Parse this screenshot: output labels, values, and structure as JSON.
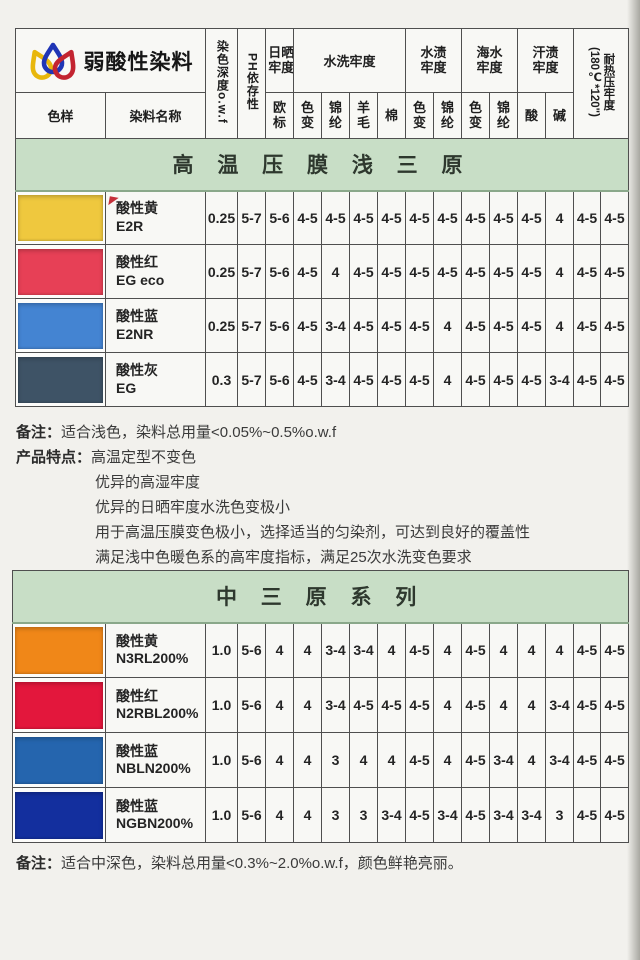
{
  "brand": {
    "title": "弱酸性染料"
  },
  "colors": {
    "band_green": "#c8dec6",
    "logo_yellow": "#e8b70c",
    "logo_blue": "#1f35b5",
    "logo_red": "#c32430"
  },
  "header": {
    "sample_label": "色样",
    "name_label": "染料名称",
    "depth_label": "染色深度o.w.f",
    "ph_label": "PH依存性",
    "sun_group": "日晒牢度",
    "sun_sub": "欧标",
    "wash_group": "水洗牢度",
    "wash_sub": [
      "色变",
      "锦纶",
      "羊毛",
      "棉"
    ],
    "water_group": "水渍牢度",
    "water_sub": [
      "色变",
      "锦纶"
    ],
    "sea_group": "海水牢度",
    "sea_sub": [
      "色变",
      "锦纶"
    ],
    "sweat_group": "汗渍牢度",
    "sweat_sub": [
      "酸",
      "碱"
    ],
    "heat_name": "耐热压牢度",
    "heat_cond": "(180℃*120\")"
  },
  "table1": {
    "title": "高 温 压 膜 浅 三 原",
    "rows": [
      {
        "color": "#efc83e",
        "name": "酸性黄",
        "code": "E2R",
        "marker": true,
        "values": [
          "0.25",
          "5-7",
          "5-6",
          "4-5",
          "4-5",
          "4-5",
          "4-5",
          "4-5",
          "4-5",
          "4-5",
          "4-5",
          "4-5",
          "4",
          "4-5",
          "4-5"
        ]
      },
      {
        "color": "#e74056",
        "name": "酸性红",
        "code": "EG eco",
        "values": [
          "0.25",
          "5-7",
          "5-6",
          "4-5",
          "4",
          "4-5",
          "4-5",
          "4-5",
          "4-5",
          "4-5",
          "4-5",
          "4-5",
          "4",
          "4-5",
          "4-5"
        ]
      },
      {
        "color": "#4484d2",
        "name": "酸性蓝",
        "code": "E2NR",
        "values": [
          "0.25",
          "5-7",
          "5-6",
          "4-5",
          "3-4",
          "4-5",
          "4-5",
          "4-5",
          "4",
          "4-5",
          "4-5",
          "4-5",
          "4",
          "4-5",
          "4-5"
        ]
      },
      {
        "color": "#3e5366",
        "name": "酸性灰",
        "code": "EG",
        "values": [
          "0.3",
          "5-7",
          "5-6",
          "4-5",
          "3-4",
          "4-5",
          "4-5",
          "4-5",
          "4",
          "4-5",
          "4-5",
          "4-5",
          "3-4",
          "4-5",
          "4-5"
        ]
      }
    ],
    "note_label": "备注：",
    "note_text": "适合浅色，染料总用量<0.05%~0.5%o.w.f",
    "features_label": "产品特点：",
    "features": [
      "高温定型不变色",
      "优异的高湿牢度",
      "优异的日晒牢度水洗色变极小",
      "用于高温压膜变色极小，选择适当的匀染剂，可达到良好的覆盖性",
      "满足浅中色暖色系的高牢度指标，满足25次水洗变色要求"
    ]
  },
  "table2": {
    "title": "中  三  原  系  列",
    "rows": [
      {
        "color": "#f08718",
        "name": "酸性黄",
        "code": "N3RL200%",
        "values": [
          "1.0",
          "5-6",
          "4",
          "4",
          "3-4",
          "3-4",
          "4",
          "4-5",
          "4",
          "4-5",
          "4",
          "4",
          "4",
          "4-5",
          "4-5"
        ]
      },
      {
        "color": "#e3173c",
        "name": "酸性红",
        "code": "N2RBL200%",
        "values": [
          "1.0",
          "5-6",
          "4",
          "4",
          "3-4",
          "4-5",
          "4-5",
          "4-5",
          "4",
          "4-5",
          "4",
          "4",
          "3-4",
          "4-5",
          "4-5"
        ]
      },
      {
        "color": "#2565ae",
        "name": "酸性蓝",
        "code": "NBLN200%",
        "values": [
          "1.0",
          "5-6",
          "4",
          "4",
          "3",
          "4",
          "4",
          "4-5",
          "4",
          "4-5",
          "3-4",
          "4",
          "3-4",
          "4-5",
          "4-5"
        ]
      },
      {
        "color": "#132f9e",
        "name": "酸性蓝",
        "code": "NGBN200%",
        "values": [
          "1.0",
          "5-6",
          "4",
          "4",
          "3",
          "3",
          "3-4",
          "4-5",
          "3-4",
          "4-5",
          "3-4",
          "3-4",
          "3",
          "4-5",
          "4-5"
        ]
      }
    ],
    "note_label": "备注：",
    "note_text": "适合中深色，染料总用量<0.3%~2.0%o.w.f，颜色鲜艳亮丽。"
  }
}
